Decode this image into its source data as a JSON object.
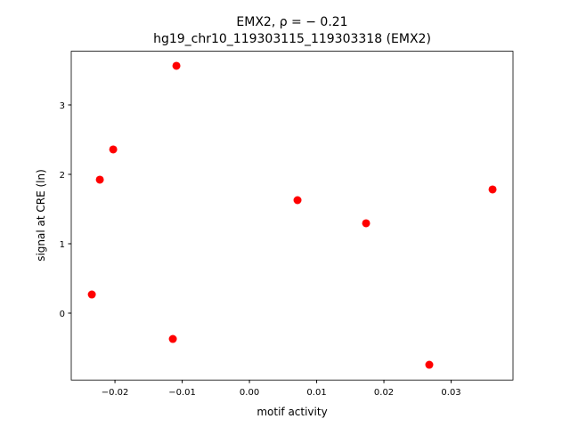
{
  "chart_data": {
    "type": "scatter",
    "title": "EMX2, ρ = − 0.21",
    "subtitle": "hg19_chr10_119303115_119303318 (EMX2)",
    "x_label": "motif activity",
    "y_label": "signal at CRE (ln)",
    "color": "#ff0000",
    "x": [
      -0.01086,
      -0.02026,
      -0.02225,
      -0.02344,
      -0.01139,
      0.00715,
      0.01735,
      0.02675,
      0.03616
    ],
    "y": [
      3.564,
      2.359,
      1.923,
      0.269,
      -0.372,
      1.628,
      1.295,
      -0.744,
      1.782
    ],
    "xlim": [
      -0.0265,
      0.0392
    ],
    "ylim": [
      -0.964,
      3.774
    ],
    "xticks": [
      {
        "value": -0.02,
        "label": "−0.02"
      },
      {
        "value": -0.01,
        "label": "−0.01"
      },
      {
        "value": 0,
        "label": "0.00"
      },
      0.01,
      0.02,
      0.03
    ],
    "yticks": [
      0,
      1,
      2,
      3
    ],
    "grid": false
  }
}
